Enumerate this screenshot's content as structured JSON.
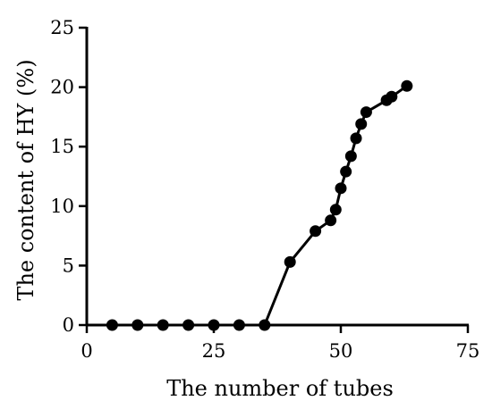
{
  "chart_data": {
    "type": "line",
    "title": "",
    "xlabel": "The number of tubes",
    "ylabel": "The content of HY (%)",
    "xlim": [
      0,
      75
    ],
    "ylim": [
      0,
      25
    ],
    "xticks": [
      "0",
      "25",
      "50",
      "75"
    ],
    "yticks": [
      "0",
      "5",
      "10",
      "15",
      "20",
      "25"
    ],
    "grid": false,
    "legend": "none",
    "series": [
      {
        "marker": "circle",
        "color": "#000000",
        "x": [
          5,
          10,
          15,
          20,
          25,
          30,
          35,
          40,
          45,
          48,
          49,
          50,
          51,
          52,
          53,
          54,
          55,
          59,
          60,
          63
        ],
        "y": [
          0,
          0,
          0,
          0,
          0,
          0,
          0,
          5.3,
          7.9,
          8.8,
          9.7,
          11.5,
          12.9,
          14.2,
          15.7,
          16.9,
          17.9,
          18.9,
          19.2,
          20.1
        ]
      }
    ]
  }
}
